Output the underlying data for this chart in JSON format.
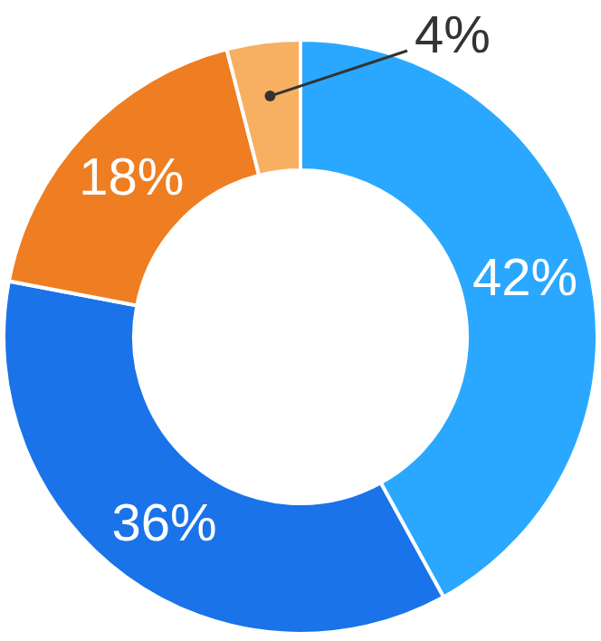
{
  "chart_data": {
    "type": "donut",
    "categories": [
      null,
      null,
      null,
      null
    ],
    "values": [
      42,
      36,
      18,
      4
    ],
    "colors": [
      "#2aa8ff",
      "#1a73e8",
      "#ef7d22",
      "#f7b062"
    ],
    "value_labels": [
      "42%",
      "36%",
      "18%",
      "4%"
    ]
  }
}
